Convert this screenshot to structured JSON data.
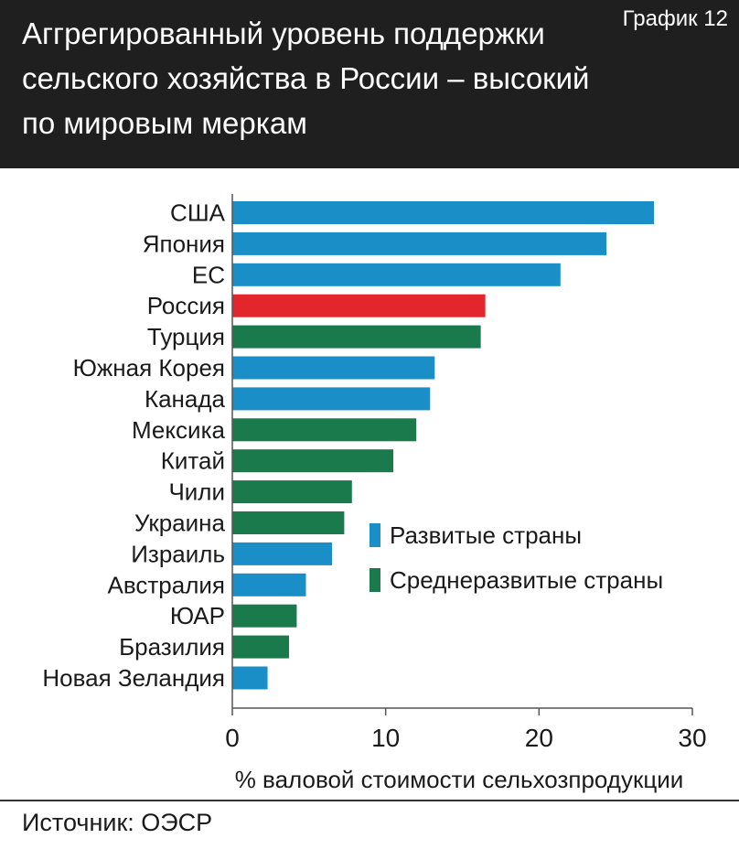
{
  "header": {
    "title": "Аггрегированный уровень поддержки сельского хозяйства в России – высокий по мировым меркам",
    "chart_label": "График 12"
  },
  "source": "Источник: ОЭСР",
  "colors": {
    "developed": "#1a8fc7",
    "developing": "#1a7a4c",
    "russia": "#e2262b",
    "header_bg": "#1f1f1f"
  },
  "chart_data": {
    "type": "bar",
    "orientation": "horizontal",
    "title": "",
    "xlabel": "% валовой стоимости сельхозпродукции",
    "ylabel": "",
    "xlim": [
      0,
      30
    ],
    "xticks": [
      0,
      10,
      20,
      30
    ],
    "grid": false,
    "legend_position": "center-right",
    "legend": [
      {
        "label": "Развитые страны",
        "color": "#1a8fc7"
      },
      {
        "label": "Среднеразвитые страны",
        "color": "#1a7a4c"
      }
    ],
    "categories": [
      "США",
      "Япония",
      "ЕС",
      "Россия",
      "Турция",
      "Южная Корея",
      "Канада",
      "Мексика",
      "Китай",
      "Чили",
      "Украина",
      "Израиль",
      "Австралия",
      "ЮАР",
      "Бразилия",
      "Новая Зеландия"
    ],
    "values": [
      27.5,
      24.4,
      21.4,
      16.5,
      16.2,
      13.2,
      12.9,
      12.0,
      10.5,
      7.8,
      7.3,
      6.5,
      4.8,
      4.2,
      3.7,
      2.3
    ],
    "group": [
      "developed",
      "developed",
      "developed",
      "russia",
      "developing",
      "developed",
      "developed",
      "developing",
      "developing",
      "developing",
      "developing",
      "developed",
      "developed",
      "developing",
      "developing",
      "developed"
    ]
  }
}
